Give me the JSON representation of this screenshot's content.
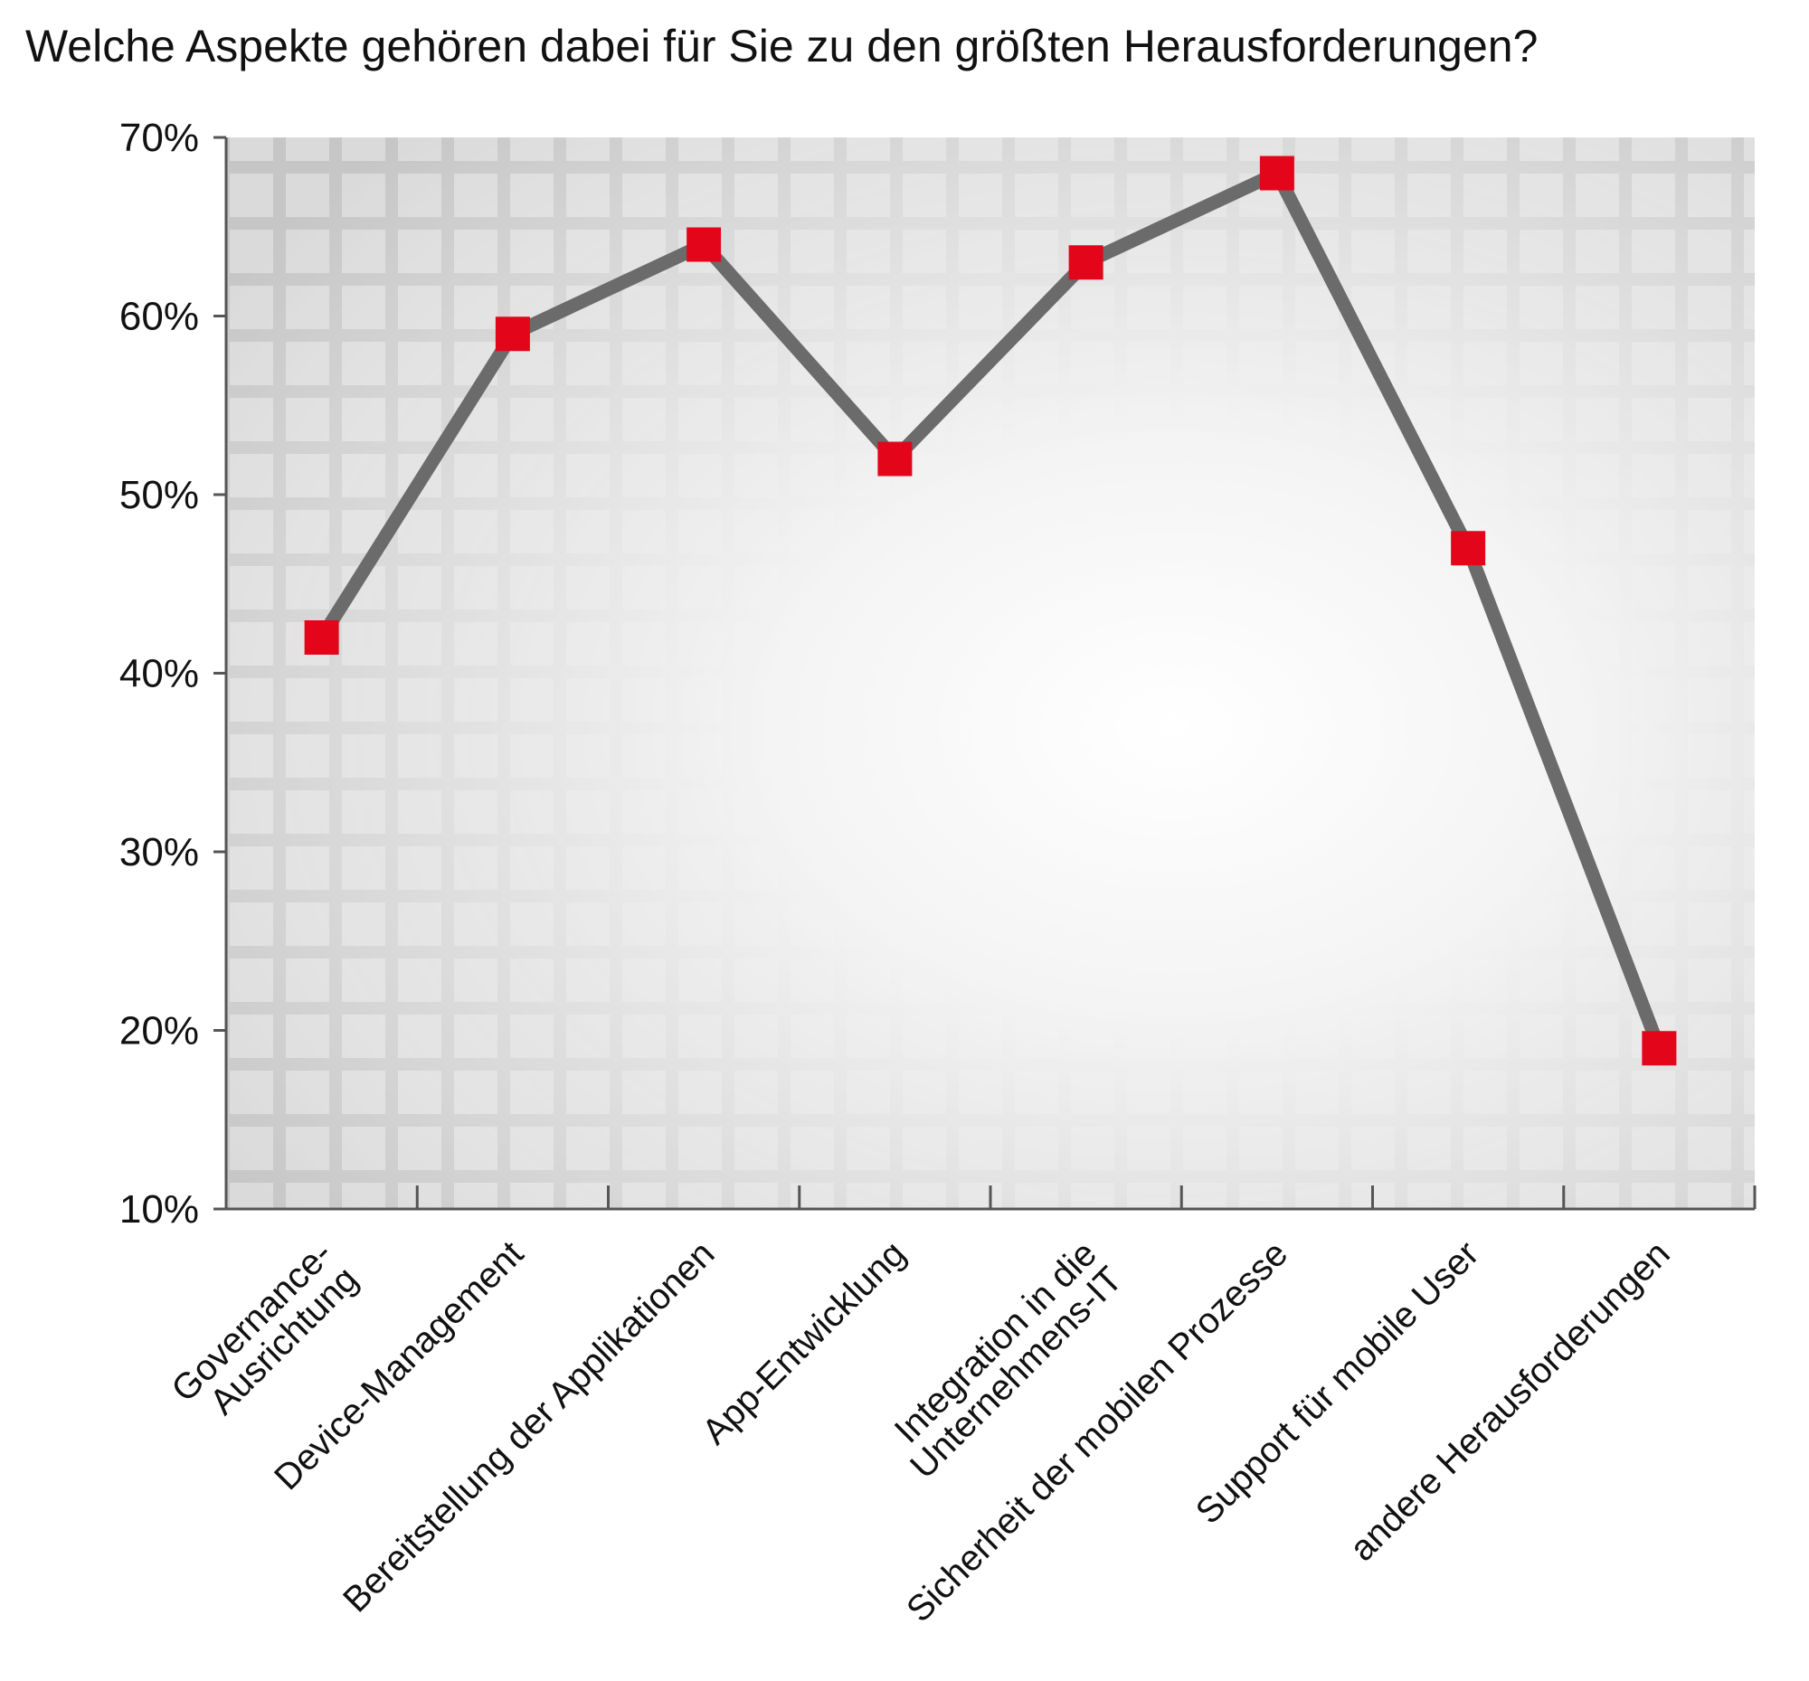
{
  "chart_data": {
    "type": "line",
    "title": "Welche Aspekte gehören dabei für Sie zu den größten Herausforderungen?",
    "xlabel": "",
    "ylabel": "",
    "ylim": [
      10,
      70
    ],
    "yticks": [
      10,
      20,
      30,
      40,
      50,
      60,
      70
    ],
    "ytick_labels": [
      "10%",
      "20%",
      "30%",
      "40%",
      "50%",
      "60%",
      "70%"
    ],
    "categories": [
      [
        "Governance-",
        "Ausrichtung"
      ],
      [
        "Device-Management"
      ],
      [
        "Bereitstellung der Applikationen"
      ],
      [
        "App-Entwicklung"
      ],
      [
        "Integration in die",
        "Unternehmens-IT"
      ],
      [
        "Sicherheit der mobilen Prozesse"
      ],
      [
        "Support für mobile User"
      ],
      [
        "andere Herausforderungen"
      ]
    ],
    "series": [
      {
        "values": [
          42,
          59,
          64,
          52,
          63,
          68,
          47,
          19
        ]
      }
    ],
    "grid": false,
    "legend": "none",
    "colors": {
      "line": "#6b6b6b",
      "marker": "#e3061a",
      "axis": "#555555",
      "background_dark": "#c4c4c4",
      "background_light": "#ffffff"
    }
  }
}
